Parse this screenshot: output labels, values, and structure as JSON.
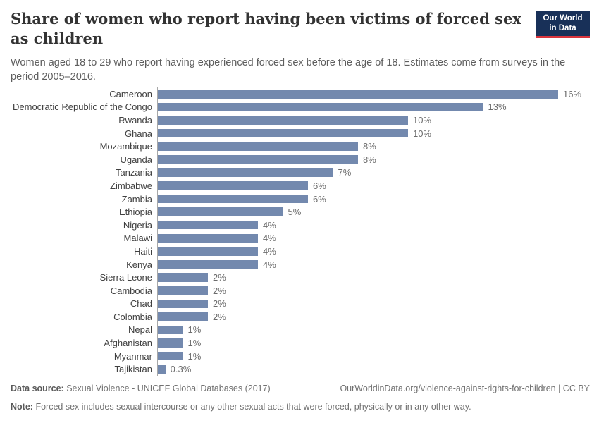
{
  "header": {
    "title": "Share of women who report having been victims of forced sex as children",
    "subtitle": "Women aged 18 to 29 who report having experienced forced sex before the age of 18. Estimates come from surveys in the period 2005–2016.",
    "logo": {
      "line1": "Our World",
      "line2": "in Data",
      "bg_color": "#183058",
      "accent_color": "#d9343c"
    }
  },
  "chart_data": {
    "type": "bar",
    "orientation": "horizontal",
    "title": "Share of women who report having been victims of forced sex as children",
    "categories": [
      "Cameroon",
      "Democratic Republic of the Congo",
      "Rwanda",
      "Ghana",
      "Mozambique",
      "Uganda",
      "Tanzania",
      "Zimbabwe",
      "Zambia",
      "Ethiopia",
      "Nigeria",
      "Malawi",
      "Haiti",
      "Kenya",
      "Sierra Leone",
      "Cambodia",
      "Chad",
      "Colombia",
      "Nepal",
      "Afghanistan",
      "Myanmar",
      "Tajikistan"
    ],
    "values": [
      16,
      13,
      10,
      10,
      8,
      8,
      7,
      6,
      6,
      5,
      4,
      4,
      4,
      4,
      2,
      2,
      2,
      2,
      1,
      1,
      1,
      0.3
    ],
    "value_labels": [
      "16%",
      "13%",
      "10%",
      "10%",
      "8%",
      "8%",
      "7%",
      "6%",
      "6%",
      "5%",
      "4%",
      "4%",
      "4%",
      "4%",
      "2%",
      "2%",
      "2%",
      "2%",
      "1%",
      "1%",
      "1%",
      "0.3%"
    ],
    "value_suffix": "%",
    "xlim": [
      0,
      17
    ],
    "grid": false,
    "legend": "none",
    "bar_color": "#7389ae",
    "axis_line_color": "#a8a8a8"
  },
  "footer": {
    "data_source_label": "Data source:",
    "data_source": "Sexual Violence - UNICEF Global Databases (2017)",
    "link": "OurWorldinData.org/violence-against-rights-for-children | CC BY",
    "note_label": "Note:",
    "note": "Forced sex includes sexual intercourse or any other sexual acts that were forced, physically or in any other way."
  }
}
